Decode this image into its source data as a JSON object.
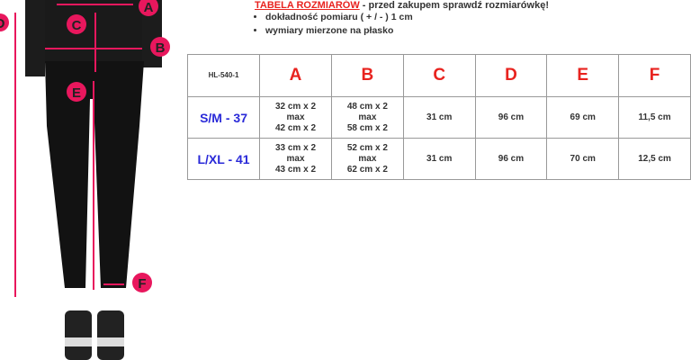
{
  "header": {
    "title_link": "TABELA ROZMIARÓW",
    "title_rest": " - przed zakupem sprawdź rozmiarówkę!",
    "bullets": [
      "dokładność pomiaru ( + / - ) 1 cm",
      "wymiary mierzone na płasko"
    ]
  },
  "figure": {
    "labels": [
      "A",
      "B",
      "C",
      "D",
      "E",
      "F"
    ],
    "accent": "#e8175d"
  },
  "table": {
    "code": "HL-540-1",
    "columns": [
      "A",
      "B",
      "C",
      "D",
      "E",
      "F"
    ],
    "rows": [
      {
        "size": "S/M - 37",
        "A": [
          "32 cm x 2",
          "max",
          "42 cm x 2"
        ],
        "B": [
          "48 cm x 2",
          "max",
          "58 cm x 2"
        ],
        "C": "31 cm",
        "D": "96 cm",
        "E": "69 cm",
        "F": "11,5 cm"
      },
      {
        "size": "L/XL - 41",
        "A": [
          "33 cm x 2",
          "max",
          "43 cm x 2"
        ],
        "B": [
          "52 cm x 2",
          "max",
          "62 cm x 2"
        ],
        "C": "31 cm",
        "D": "96 cm",
        "E": "70 cm",
        "F": "12,5 cm"
      }
    ]
  },
  "colors": {
    "heading_red": "#e8231f",
    "size_blue": "#2a2ad8"
  }
}
